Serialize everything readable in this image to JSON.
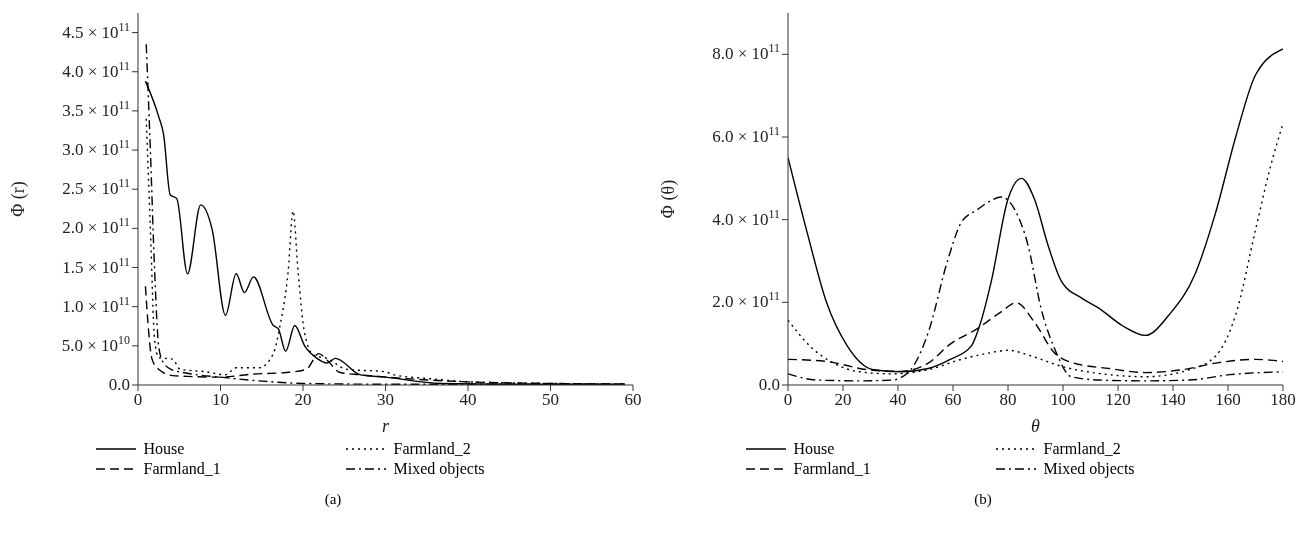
{
  "chart_data": [
    {
      "type": "line",
      "xlabel": "r",
      "ylabel": "Φ (r)",
      "xlim": [
        0,
        60
      ],
      "xticks": [
        0,
        10,
        20,
        30,
        40,
        50,
        60
      ],
      "ylim": [
        0,
        475000000000.0
      ],
      "yticks": [
        {
          "value": 0,
          "label": "0.0"
        },
        {
          "value": 50000000000.0,
          "label": "5.0 × 10$^{10}$"
        },
        {
          "value": 100000000000.0,
          "label": "1.0 × 10$^{11}$"
        },
        {
          "value": 150000000000.0,
          "label": "1.5 × 10$^{11}$"
        },
        {
          "value": 200000000000.0,
          "label": "2.0 × 10$^{11}$"
        },
        {
          "value": 250000000000.0,
          "label": "2.5 × 10$^{11}$"
        },
        {
          "value": 300000000000.0,
          "label": "3.0 × 10$^{11}$"
        },
        {
          "value": 350000000000.0,
          "label": "3.5 × 10$^{11}$"
        },
        {
          "value": 400000000000.0,
          "label": "4.0 × 10$^{11}$"
        },
        {
          "value": 450000000000.0,
          "label": "4.5 × 10$^{11}$"
        }
      ],
      "legend": "bottom",
      "marker": "none",
      "annotations": [
        "(a)"
      ],
      "series": [
        {
          "name": "House",
          "color": "#000000",
          "line_style": "solid",
          "x": [
            0.9,
            2.5,
            3.1,
            3.9,
            4.7,
            6,
            7.6,
            9,
            10.6,
            11.9,
            12.9,
            14,
            16.4,
            17,
            17.9,
            19,
            20.2,
            21.7,
            22.9,
            23.9,
            27,
            30,
            36.7,
            45,
            59
          ],
          "values": [
            388000000000.0,
            343000000000.0,
            320000000000.0,
            243000000000.0,
            238000000000.0,
            142000000000.0,
            230000000000.0,
            198000000000.0,
            89000000000.0,
            142000000000.0,
            118000000000.0,
            138000000000.0,
            76000000000.0,
            72000000000.0,
            43000000000.0,
            76000000000.0,
            50000000000.0,
            34000000000.0,
            28000000000.0,
            34000000000.0,
            13000000000.0,
            10000000000.0,
            2000000000.0,
            1000000000.0,
            1000000000.0
          ]
        },
        {
          "name": "Farmland_1",
          "color": "#000000",
          "line_style": "dashed",
          "x": [
            0.9,
            1.7,
            2.5,
            4.2,
            6,
            9.8,
            14,
            18,
            20.4,
            21.9,
            22.9,
            24.5,
            27,
            32.7,
            40,
            50,
            59
          ],
          "values": [
            126000000000.0,
            33000000000.0,
            20000000000.0,
            12000000000.0,
            11000000000.0,
            10000000000.0,
            14000000000.0,
            16000000000.0,
            20000000000.0,
            40000000000.0,
            32000000000.0,
            16000000000.0,
            13000000000.0,
            8000000000.0,
            4000000000.0,
            2000000000.0,
            1000000000.0
          ]
        },
        {
          "name": "Farmland_2",
          "color": "#000000",
          "line_style": "dotted",
          "x": [
            1,
            1.5,
            2,
            2.5,
            4.2,
            5.1,
            8.2,
            10.6,
            11.9,
            14.7,
            16.4,
            17.2,
            18.2,
            18.8,
            19.4,
            20.2,
            21.3,
            22.9,
            25.3,
            29.9,
            31,
            35.5,
            40,
            50,
            59
          ],
          "values": [
            340000000000.0,
            200000000000.0,
            60000000000.0,
            35000000000.0,
            33000000000.0,
            20000000000.0,
            17000000000.0,
            13000000000.0,
            22000000000.0,
            22000000000.0,
            40000000000.0,
            75000000000.0,
            145000000000.0,
            222000000000.0,
            145000000000.0,
            66000000000.0,
            38000000000.0,
            34000000000.0,
            20000000000.0,
            17000000000.0,
            13000000000.0,
            8000000000.0,
            4000000000.0,
            2000000000.0,
            1000000000.0
          ]
        },
        {
          "name": "Mixed objects",
          "color": "#000000",
          "line_style": "dashdot",
          "x": [
            1,
            1.5,
            2,
            2.5,
            3,
            4,
            6,
            10,
            15,
            20,
            30,
            45,
            59
          ],
          "values": [
            435000000000.0,
            300000000000.0,
            150000000000.0,
            50000000000.0,
            30000000000.0,
            20000000000.0,
            15000000000.0,
            10000000000.0,
            5000000000.0,
            2000000000.0,
            1000000000.0,
            1000000000.0,
            1000000000.0
          ]
        }
      ]
    },
    {
      "type": "line",
      "xlabel": "θ",
      "ylabel": "Φ (θ)",
      "xlim": [
        0,
        180
      ],
      "xticks": [
        0,
        20,
        40,
        60,
        80,
        100,
        120,
        140,
        160,
        180
      ],
      "ylim": [
        0,
        900000000000.0
      ],
      "yticks": [
        {
          "value": 0,
          "label": "0.0"
        },
        {
          "value": 200000000000.0,
          "label": "2.0 × 10$^{11}$"
        },
        {
          "value": 400000000000.0,
          "label": "4.0 × 10$^{11}$"
        },
        {
          "value": 600000000000.0,
          "label": "6.0 × 10$^{11}$"
        },
        {
          "value": 800000000000.0,
          "label": "8.0 × 10$^{11}$"
        }
      ],
      "legend": "bottom",
      "marker": "none",
      "annotations": [
        "(b)"
      ],
      "series": [
        {
          "name": "House",
          "color": "#000000",
          "line_style": "solid",
          "x": [
            0,
            7,
            14,
            21.6,
            31,
            41,
            51,
            59,
            66.6,
            70,
            73.9,
            80,
            84.9,
            89.6,
            94.7,
            99.5,
            106.8,
            113,
            121.5,
            130,
            138.6,
            148,
            155.5,
            162.8,
            170,
            180
          ],
          "values": [
            550000000000.0,
            368000000000.0,
            200000000000.0,
            94000000000.0,
            37000000000.0,
            32000000000.0,
            40000000000.0,
            62000000000.0,
            94000000000.0,
            150000000000.0,
            250000000000.0,
            450000000000.0,
            500000000000.0,
            450000000000.0,
            335000000000.0,
            250000000000.0,
            210000000000.0,
            186000000000.0,
            144000000000.0,
            120000000000.0,
            170000000000.0,
            268000000000.0,
            417000000000.0,
            600000000000.0,
            750000000000.0,
            813000000000.0
          ]
        },
        {
          "name": "Farmland_1",
          "color": "#000000",
          "line_style": "dashed",
          "x": [
            0,
            14,
            29,
            41,
            51,
            59,
            69,
            77.5,
            83,
            89.6,
            97,
            104,
            116.7,
            130,
            143.4,
            155.5,
            170,
            180
          ],
          "values": [
            62000000000.0,
            57000000000.0,
            37000000000.0,
            33000000000.0,
            53000000000.0,
            99000000000.0,
            137000000000.0,
            177000000000.0,
            199000000000.0,
            152000000000.0,
            77000000000.0,
            53000000000.0,
            40000000000.0,
            30000000000.0,
            37000000000.0,
            53000000000.0,
            62000000000.0,
            57000000000.0
          ]
        },
        {
          "name": "Farmland_2",
          "color": "#000000",
          "line_style": "dotted",
          "x": [
            0,
            8,
            16.5,
            26,
            38,
            51,
            63,
            72.8,
            80,
            88.5,
            99.5,
            113,
            130,
            146,
            155.5,
            162.8,
            170,
            175,
            180
          ],
          "values": [
            157000000000.0,
            94000000000.0,
            53000000000.0,
            32000000000.0,
            27000000000.0,
            37000000000.0,
            62000000000.0,
            77000000000.0,
            84000000000.0,
            70000000000.0,
            45000000000.0,
            28000000000.0,
            20000000000.0,
            37000000000.0,
            70000000000.0,
            170000000000.0,
            375000000000.0,
            517000000000.0,
            633000000000.0
          ]
        },
        {
          "name": "Mixed objects",
          "color": "#000000",
          "line_style": "dashdot",
          "x": [
            0,
            10.6,
            26,
            38,
            44.6,
            51,
            58,
            63,
            69,
            74,
            77.5,
            82.4,
            87.4,
            92,
            97,
            103,
            113,
            130,
            146,
            160.6,
            180
          ],
          "values": [
            27000000000.0,
            12000000000.0,
            10000000000.0,
            12000000000.0,
            37000000000.0,
            127000000000.0,
            300000000000.0,
            393000000000.0,
            425000000000.0,
            447000000000.0,
            455000000000.0,
            425000000000.0,
            335000000000.0,
            186000000000.0,
            87000000000.0,
            20000000000.0,
            12000000000.0,
            10000000000.0,
            12000000000.0,
            25000000000.0,
            32000000000.0
          ]
        }
      ]
    }
  ]
}
